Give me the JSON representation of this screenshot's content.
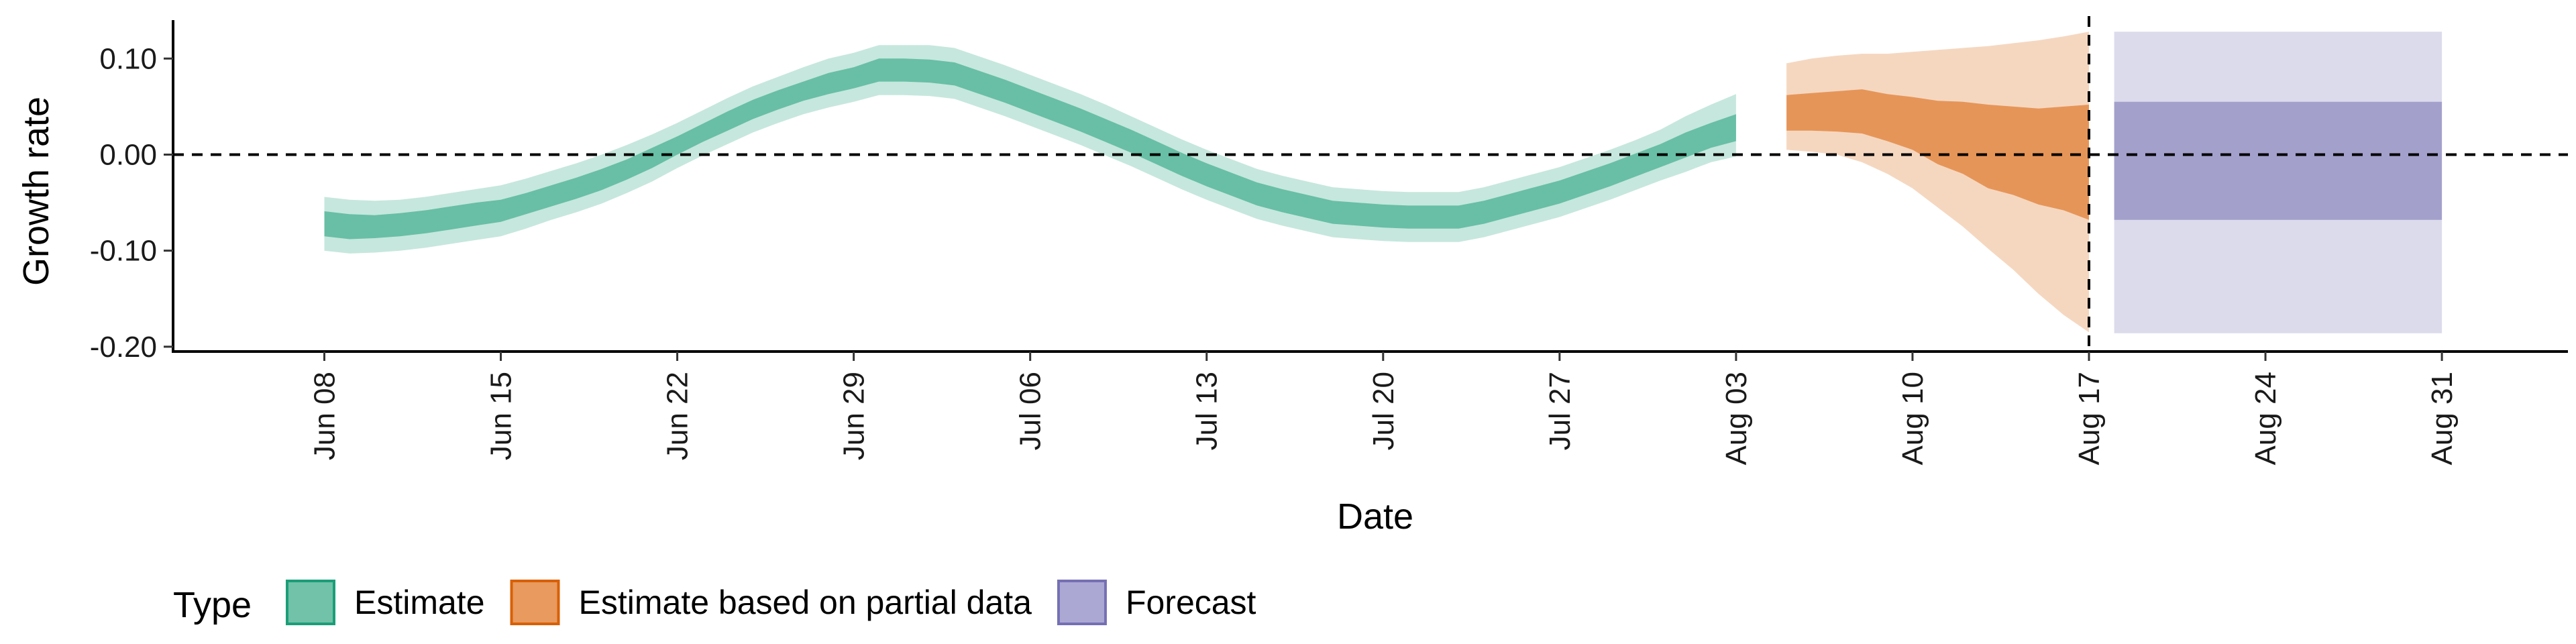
{
  "chart_data": {
    "type": "area",
    "title": "",
    "xlabel": "Date",
    "ylabel": "Growth rate",
    "xlim": [
      "2020-06-02",
      "2020-09-05"
    ],
    "ylim": [
      -0.205,
      0.14
    ],
    "x_ticks": [
      "2020-06-08",
      "2020-06-15",
      "2020-06-22",
      "2020-06-29",
      "2020-07-06",
      "2020-07-13",
      "2020-07-20",
      "2020-07-27",
      "2020-08-03",
      "2020-08-10",
      "2020-08-17",
      "2020-08-24",
      "2020-08-31"
    ],
    "x_tick_labels": [
      "Jun 08",
      "Jun 15",
      "Jun 22",
      "Jun 29",
      "Jul 06",
      "Jul 13",
      "Jul 20",
      "Jul 27",
      "Aug 03",
      "Aug 10",
      "Aug 17",
      "Aug 24",
      "Aug 31"
    ],
    "y_ticks": [
      -0.2,
      -0.1,
      0.0,
      0.1
    ],
    "y_tick_labels": [
      "-0.20",
      "-0.10",
      "0.00",
      "0.10"
    ],
    "reference_lines": {
      "horizontal_y": 0.0,
      "vertical_x": "2020-08-17"
    },
    "grid": false,
    "legend": {
      "position": "bottom-left",
      "title": "Type",
      "entries": [
        "Estimate",
        "Estimate based on partial data",
        "Forecast"
      ]
    },
    "series": [
      {
        "name": "Estimate",
        "color": "#1b9e77",
        "x": [
          "2020-06-08",
          "2020-06-09",
          "2020-06-10",
          "2020-06-11",
          "2020-06-12",
          "2020-06-13",
          "2020-06-14",
          "2020-06-15",
          "2020-06-16",
          "2020-06-17",
          "2020-06-18",
          "2020-06-19",
          "2020-06-20",
          "2020-06-21",
          "2020-06-22",
          "2020-06-23",
          "2020-06-24",
          "2020-06-25",
          "2020-06-26",
          "2020-06-27",
          "2020-06-28",
          "2020-06-29",
          "2020-06-30",
          "2020-07-01",
          "2020-07-02",
          "2020-07-03",
          "2020-07-04",
          "2020-07-05",
          "2020-07-06",
          "2020-07-07",
          "2020-07-08",
          "2020-07-09",
          "2020-07-10",
          "2020-07-11",
          "2020-07-12",
          "2020-07-13",
          "2020-07-14",
          "2020-07-15",
          "2020-07-16",
          "2020-07-17",
          "2020-07-18",
          "2020-07-19",
          "2020-07-20",
          "2020-07-21",
          "2020-07-22",
          "2020-07-23",
          "2020-07-24",
          "2020-07-25",
          "2020-07-26",
          "2020-07-27",
          "2020-07-28",
          "2020-07-29",
          "2020-07-30",
          "2020-07-31",
          "2020-08-01",
          "2020-08-02",
          "2020-08-03"
        ],
        "median": [
          -0.072,
          -0.075,
          -0.075,
          -0.073,
          -0.07,
          -0.066,
          -0.062,
          -0.059,
          -0.051,
          -0.043,
          -0.035,
          -0.026,
          -0.016,
          -0.004,
          0.009,
          0.022,
          0.035,
          0.047,
          0.057,
          0.066,
          0.074,
          0.08,
          0.088,
          0.088,
          0.087,
          0.084,
          0.075,
          0.066,
          0.056,
          0.046,
          0.036,
          0.025,
          0.014,
          0.002,
          -0.01,
          -0.021,
          -0.031,
          -0.041,
          -0.048,
          -0.054,
          -0.06,
          -0.062,
          -0.064,
          -0.065,
          -0.065,
          -0.065,
          -0.06,
          -0.053,
          -0.046,
          -0.039,
          -0.03,
          -0.021,
          -0.011,
          -0.001,
          0.01,
          0.02,
          0.028
        ],
        "lower_50": [
          -0.085,
          -0.088,
          -0.087,
          -0.085,
          -0.082,
          -0.078,
          -0.074,
          -0.07,
          -0.062,
          -0.054,
          -0.046,
          -0.037,
          -0.026,
          -0.014,
          0.0,
          0.013,
          0.025,
          0.037,
          0.047,
          0.056,
          0.063,
          0.069,
          0.076,
          0.076,
          0.075,
          0.072,
          0.063,
          0.054,
          0.044,
          0.034,
          0.024,
          0.013,
          0.002,
          -0.01,
          -0.022,
          -0.033,
          -0.043,
          -0.053,
          -0.06,
          -0.066,
          -0.072,
          -0.074,
          -0.076,
          -0.077,
          -0.077,
          -0.077,
          -0.072,
          -0.065,
          -0.058,
          -0.051,
          -0.042,
          -0.033,
          -0.023,
          -0.013,
          -0.003,
          0.007,
          0.014
        ],
        "upper_50": [
          -0.059,
          -0.062,
          -0.063,
          -0.061,
          -0.058,
          -0.054,
          -0.05,
          -0.047,
          -0.04,
          -0.032,
          -0.024,
          -0.015,
          -0.005,
          0.007,
          0.019,
          0.032,
          0.045,
          0.057,
          0.067,
          0.076,
          0.085,
          0.091,
          0.1,
          0.1,
          0.099,
          0.096,
          0.087,
          0.078,
          0.068,
          0.058,
          0.048,
          0.037,
          0.026,
          0.014,
          0.002,
          -0.009,
          -0.019,
          -0.029,
          -0.036,
          -0.042,
          -0.048,
          -0.05,
          -0.052,
          -0.053,
          -0.053,
          -0.053,
          -0.048,
          -0.041,
          -0.034,
          -0.027,
          -0.018,
          -0.009,
          0.001,
          0.011,
          0.023,
          0.033,
          0.042
        ],
        "lower_90": [
          -0.1,
          -0.103,
          -0.102,
          -0.1,
          -0.097,
          -0.093,
          -0.089,
          -0.085,
          -0.077,
          -0.068,
          -0.06,
          -0.051,
          -0.04,
          -0.028,
          -0.014,
          -0.001,
          0.011,
          0.023,
          0.033,
          0.042,
          0.049,
          0.055,
          0.062,
          0.062,
          0.061,
          0.058,
          0.049,
          0.04,
          0.03,
          0.02,
          0.01,
          -0.001,
          -0.012,
          -0.024,
          -0.036,
          -0.047,
          -0.057,
          -0.067,
          -0.074,
          -0.08,
          -0.086,
          -0.088,
          -0.09,
          -0.091,
          -0.091,
          -0.091,
          -0.086,
          -0.079,
          -0.072,
          -0.065,
          -0.056,
          -0.047,
          -0.037,
          -0.027,
          -0.018,
          -0.008,
          -0.002
        ],
        "upper_90": [
          -0.044,
          -0.047,
          -0.048,
          -0.047,
          -0.044,
          -0.04,
          -0.036,
          -0.032,
          -0.025,
          -0.017,
          -0.009,
          0.0,
          0.01,
          0.021,
          0.033,
          0.046,
          0.059,
          0.071,
          0.081,
          0.091,
          0.1,
          0.106,
          0.114,
          0.114,
          0.114,
          0.111,
          0.102,
          0.093,
          0.083,
          0.073,
          0.063,
          0.052,
          0.04,
          0.028,
          0.016,
          0.005,
          -0.005,
          -0.015,
          -0.022,
          -0.028,
          -0.034,
          -0.036,
          -0.038,
          -0.039,
          -0.039,
          -0.039,
          -0.034,
          -0.027,
          -0.02,
          -0.013,
          -0.004,
          0.005,
          0.015,
          0.026,
          0.04,
          0.052,
          0.063
        ]
      },
      {
        "name": "Estimate based on partial data",
        "color": "#d95f02",
        "x": [
          "2020-08-05",
          "2020-08-06",
          "2020-08-07",
          "2020-08-08",
          "2020-08-09",
          "2020-08-10",
          "2020-08-11",
          "2020-08-12",
          "2020-08-13",
          "2020-08-14",
          "2020-08-15",
          "2020-08-16",
          "2020-08-17"
        ],
        "median": [
          0.044,
          0.046,
          0.046,
          0.047,
          0.042,
          0.036,
          0.026,
          0.018,
          0.008,
          0.003,
          -0.004,
          -0.008,
          -0.01
        ],
        "lower_50": [
          0.025,
          0.025,
          0.024,
          0.022,
          0.014,
          0.005,
          -0.01,
          -0.02,
          -0.035,
          -0.042,
          -0.052,
          -0.058,
          -0.068
        ],
        "upper_50": [
          0.062,
          0.064,
          0.066,
          0.068,
          0.063,
          0.06,
          0.056,
          0.055,
          0.052,
          0.05,
          0.048,
          0.05,
          0.052
        ],
        "lower_90": [
          0.005,
          0.003,
          0.0,
          -0.008,
          -0.02,
          -0.035,
          -0.055,
          -0.075,
          -0.098,
          -0.12,
          -0.145,
          -0.167,
          -0.185
        ],
        "upper_90": [
          0.095,
          0.1,
          0.103,
          0.105,
          0.105,
          0.107,
          0.109,
          0.111,
          0.113,
          0.116,
          0.119,
          0.123,
          0.128
        ]
      },
      {
        "name": "Forecast",
        "color": "#7570b3",
        "x": [
          "2020-08-18",
          "2020-08-31"
        ],
        "lower_50": [
          -0.068,
          -0.068
        ],
        "upper_50": [
          0.055,
          0.055
        ],
        "lower_90": [
          -0.186,
          -0.186
        ],
        "upper_90": [
          0.128,
          0.128
        ]
      }
    ]
  }
}
